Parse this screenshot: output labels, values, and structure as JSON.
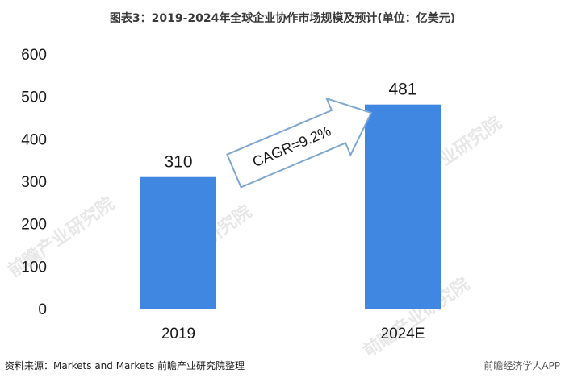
{
  "title": "图表3：2019-2024年全球企业协作市场规模及预计(单位：亿美元)",
  "chart_data": {
    "type": "bar",
    "categories": [
      "2019",
      "2024E"
    ],
    "values": [
      310,
      481
    ],
    "ylim": [
      0,
      600
    ],
    "yticks": [
      0,
      100,
      200,
      300,
      400,
      500,
      600
    ],
    "annotation": "CAGR=9.2%",
    "bar_color": "#3f87e0",
    "grid": false
  },
  "footer": {
    "source": "资料来源：Markets and Markets 前瞻产业研究院整理",
    "brand": "前瞻经济学人APP"
  },
  "watermark": "前瞻产业研究院"
}
